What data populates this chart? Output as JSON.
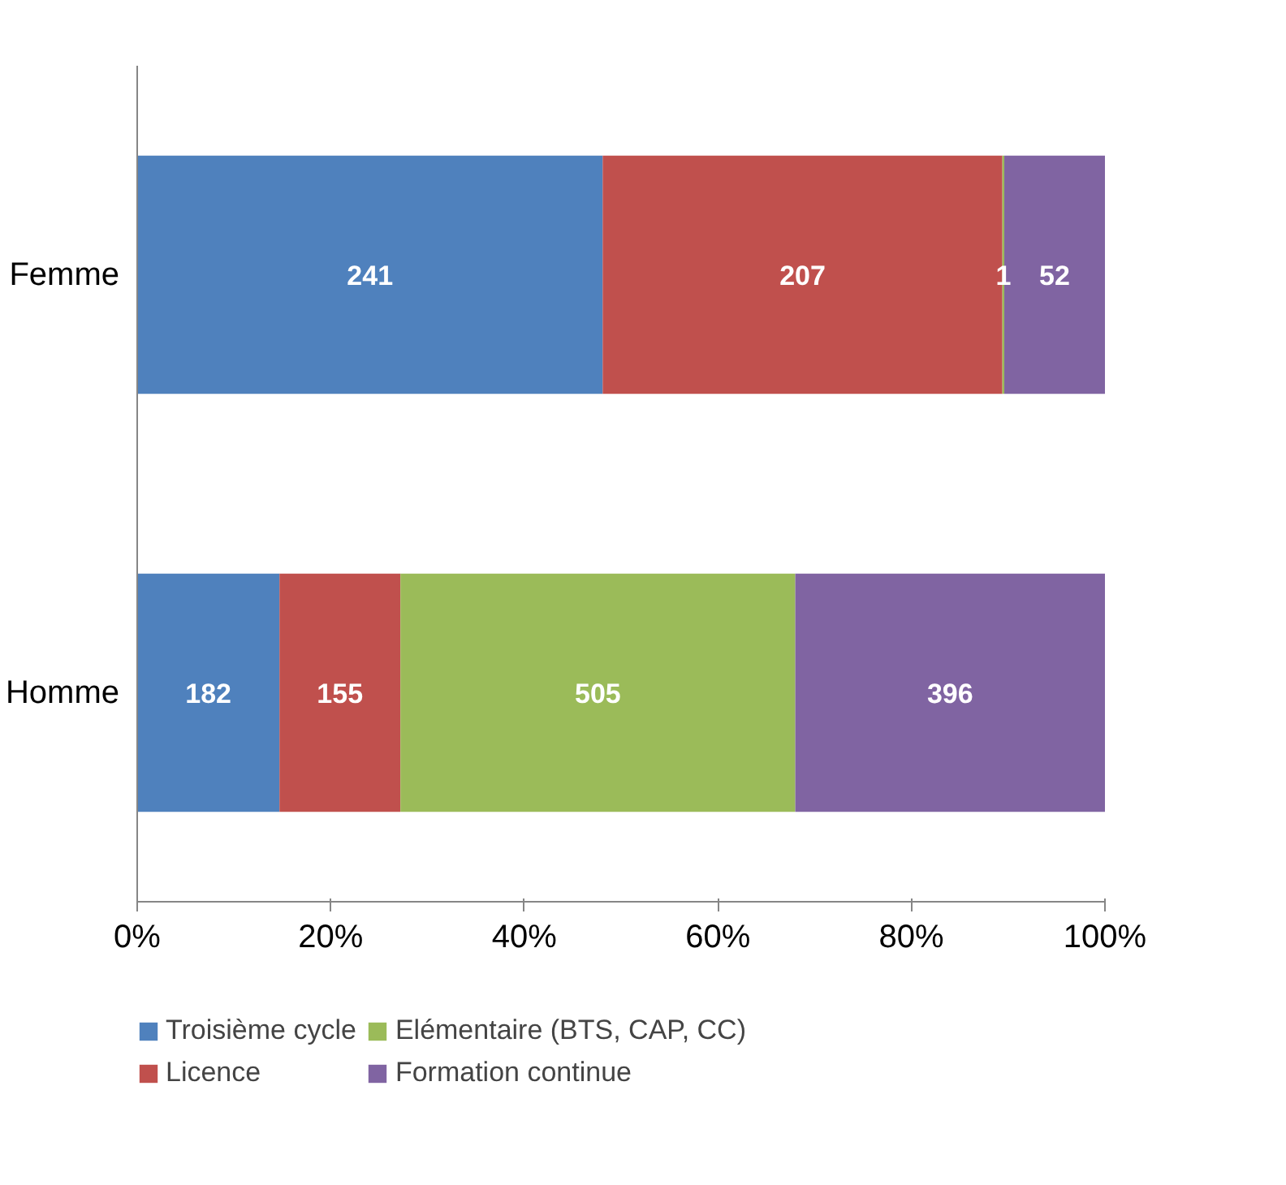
{
  "chart_data": {
    "type": "bar",
    "orientation": "horizontal",
    "stacked": true,
    "categories": [
      "Femme",
      "Homme"
    ],
    "series": [
      {
        "name": "Troisième cycle",
        "color": "#4f81bd",
        "values": [
          48.1,
          14.7
        ]
      },
      {
        "name": "Licence",
        "color": "#c0504d",
        "values": [
          41.3,
          12.5
        ]
      },
      {
        "name": "Elémentaire (BTS, CAP, CC)",
        "color": "#9bbb59",
        "values": [
          0.2,
          40.8
        ]
      },
      {
        "name": "Formation continue",
        "color": "#8064a2",
        "values": [
          10.4,
          32.0
        ]
      }
    ],
    "annotations": [
      "241",
      "207",
      "1",
      "52",
      "182",
      "155",
      "505",
      "396"
    ],
    "xlim": [
      0,
      100
    ],
    "xticks": [
      {
        "value": 0,
        "label": "0%"
      },
      {
        "value": 20,
        "label": "20%"
      },
      {
        "value": 40,
        "label": "40%"
      },
      {
        "value": 60,
        "label": "60%"
      },
      {
        "value": 80,
        "label": "80%"
      },
      {
        "value": 100,
        "label": "100%"
      }
    ],
    "grid": false,
    "legend": "bottom"
  }
}
